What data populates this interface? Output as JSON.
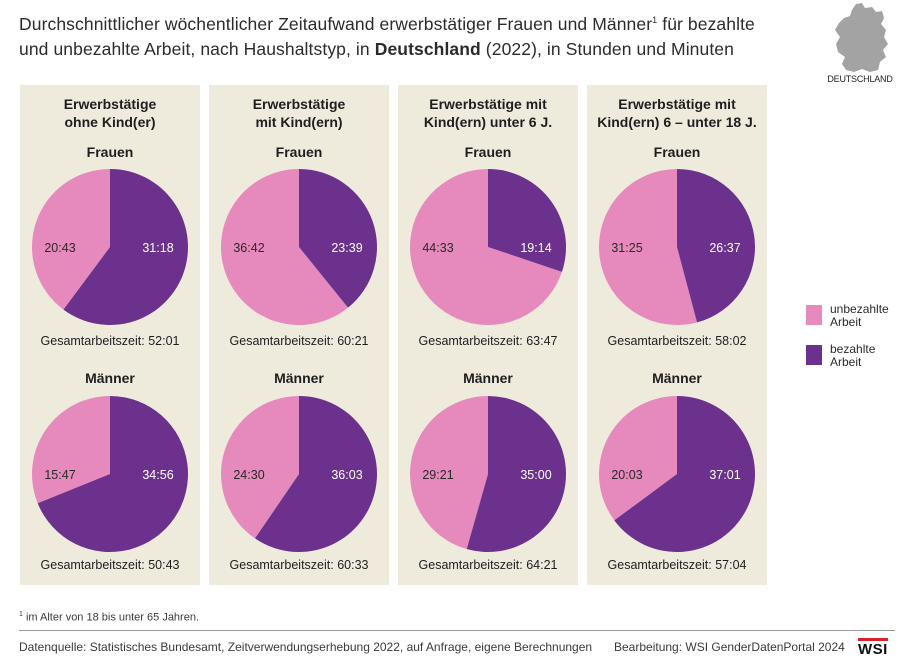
{
  "title": {
    "part1": "Durchschnittlicher wöchentlicher Zeitaufwand erwerbstätiger Frauen und Männer",
    "footnote_mark": "1",
    "part2": " für bezahlte",
    "part3": "und unbezahlte Arbeit, nach Haushaltstyp, in ",
    "bold": "Deutschland",
    "part4": " (2022), in Stunden und Minuten"
  },
  "map_label": "DEUTSCHLAND",
  "colors": {
    "unpaid": "#e689bd",
    "paid": "#6c318c",
    "panel_bg": "#efebdc"
  },
  "chart_data": {
    "type": "pie",
    "unit": "Stunden:Minuten pro Woche",
    "groups": [
      {
        "header_line1": "Erwerbstätige",
        "header_line2": "ohne Kind(er)",
        "frauen": {
          "label": "Frauen",
          "unpaid": "20:43",
          "paid": "31:18",
          "total_label": "Gesamtarbeitszeit: 52:01"
        },
        "maenner": {
          "label": "Männer",
          "unpaid": "15:47",
          "paid": "34:56",
          "total_label": "Gesamtarbeitszeit: 50:43"
        }
      },
      {
        "header_line1": "Erwerbstätige",
        "header_line2": "mit Kind(ern)",
        "frauen": {
          "label": "Frauen",
          "unpaid": "36:42",
          "paid": "23:39",
          "total_label": "Gesamtarbeitszeit: 60:21"
        },
        "maenner": {
          "label": "Männer",
          "unpaid": "24:30",
          "paid": "36:03",
          "total_label": "Gesamtarbeitszeit: 60:33"
        }
      },
      {
        "header_line1": "Erwerbstätige mit",
        "header_line2": "Kind(ern) unter 6 J.",
        "frauen": {
          "label": "Frauen",
          "unpaid": "44:33",
          "paid": "19:14",
          "total_label": "Gesamtarbeitszeit: 63:47"
        },
        "maenner": {
          "label": "Männer",
          "unpaid": "29:21",
          "paid": "35:00",
          "total_label": "Gesamtarbeitszeit: 64:21"
        }
      },
      {
        "header_line1": "Erwerbstätige mit",
        "header_line2": "Kind(ern) 6 – unter 18 J.",
        "frauen": {
          "label": "Frauen",
          "unpaid": "31:25",
          "paid": "26:37",
          "total_label": "Gesamtarbeitszeit: 58:02"
        },
        "maenner": {
          "label": "Männer",
          "unpaid": "20:03",
          "paid": "37:01",
          "total_label": "Gesamtarbeitszeit: 57:04"
        }
      }
    ],
    "legend": [
      {
        "key": "unpaid",
        "line1": "unbezahlte",
        "line2": "Arbeit"
      },
      {
        "key": "paid",
        "line1": "bezahlte",
        "line2": "Arbeit"
      }
    ]
  },
  "footnote": {
    "mark": "1",
    "text": " im Alter von 18 bis unter 65 Jahren."
  },
  "source": "Datenquelle: Statistisches Bundesamt, Zeitverwendungserhebung 2022, auf Anfrage, eigene Berechnungen",
  "credit": "Bearbeitung: WSI GenderDatenPortal 2024",
  "logo": "WSI"
}
